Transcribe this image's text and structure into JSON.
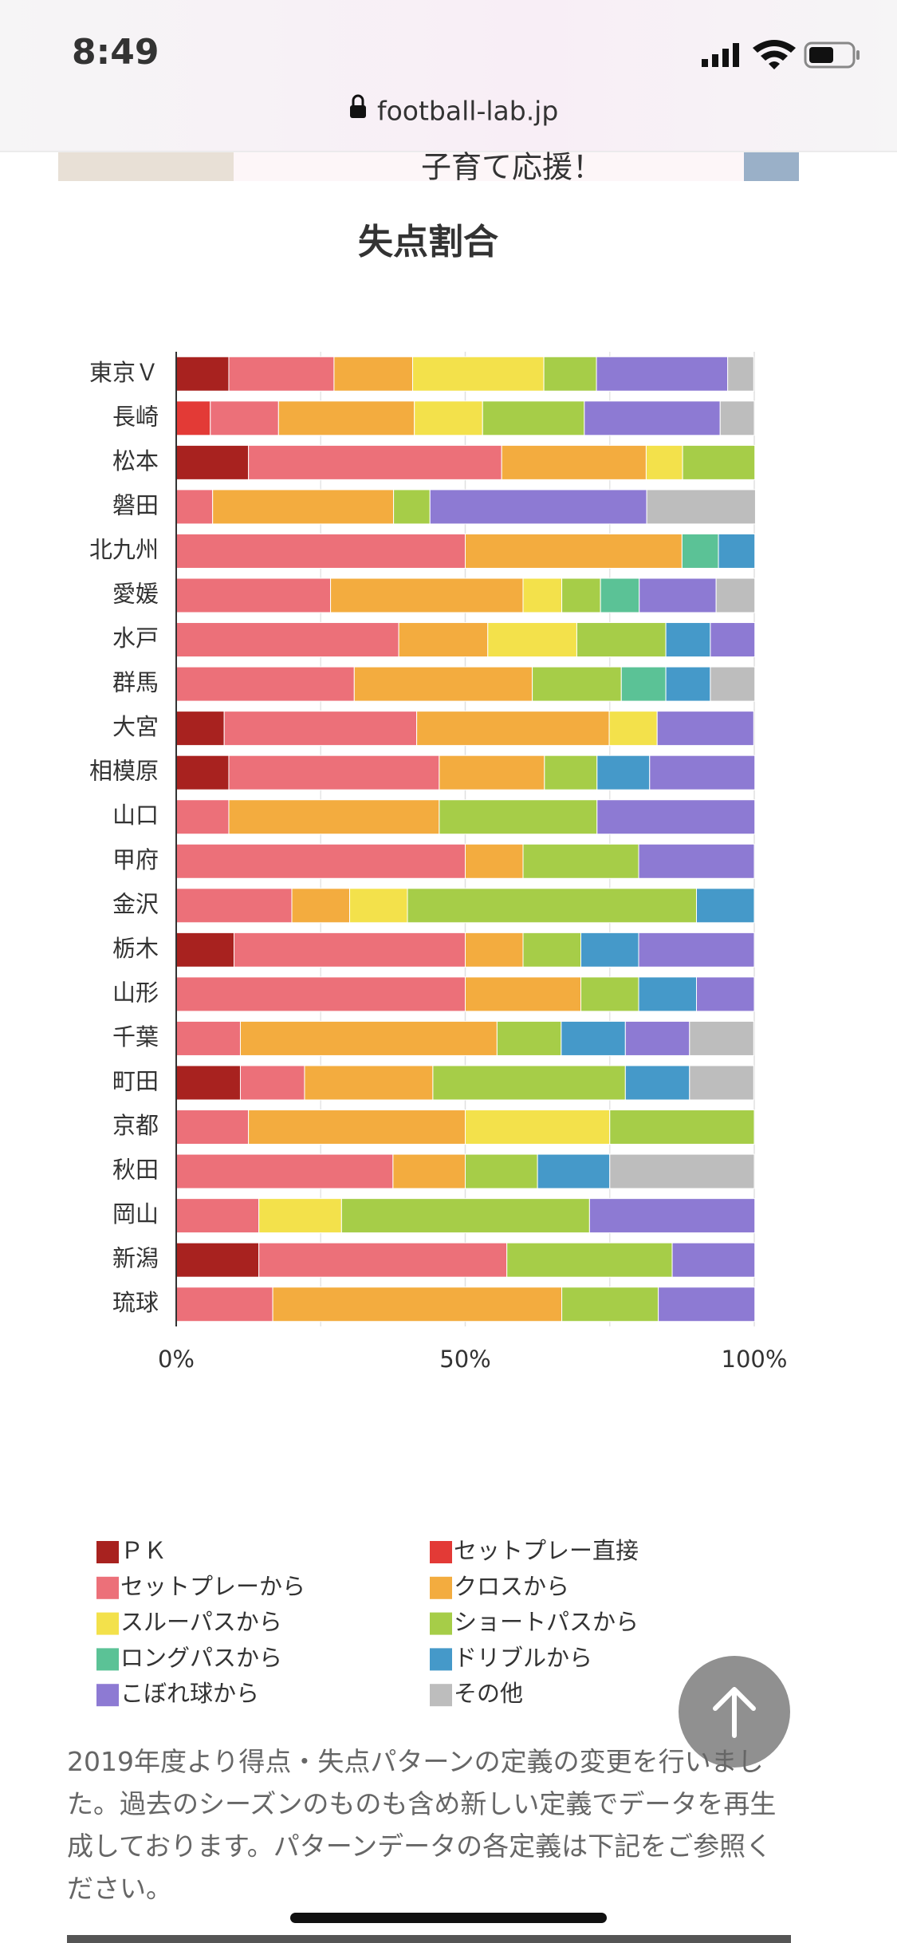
{
  "status_bar": {
    "time": "8:49",
    "url": "football-lab.jp"
  },
  "ad": {
    "text": "子育て応援！"
  },
  "chart_data": {
    "type": "bar",
    "orientation": "horizontal",
    "stacked": true,
    "title": "失点割合",
    "categories": [
      "東京Ｖ",
      "長崎",
      "松本",
      "磐田",
      "北九州",
      "愛媛",
      "水戸",
      "群馬",
      "大宮",
      "相模原",
      "山口",
      "甲府",
      "金沢",
      "栃木",
      "山形",
      "千葉",
      "町田",
      "京都",
      "秋田",
      "岡山",
      "新潟",
      "琉球"
    ],
    "series": [
      {
        "name": "ＰＫ",
        "color": "#a8221f",
        "values": [
          9.1,
          0,
          12.5,
          0,
          0,
          0,
          0,
          0,
          8.3,
          9.1,
          0,
          0,
          0,
          10,
          0,
          0,
          11.1,
          0,
          0,
          0,
          14.3,
          0
        ]
      },
      {
        "name": "セットプレー直接",
        "color": "#e33a36",
        "values": [
          0,
          5.9,
          0,
          0,
          0,
          0,
          0,
          0,
          0,
          0,
          0,
          0,
          0,
          0,
          0,
          0,
          0,
          0,
          0,
          0,
          0,
          0
        ]
      },
      {
        "name": "セットプレーから",
        "color": "#ec7079",
        "values": [
          18.2,
          11.8,
          43.8,
          6.3,
          50,
          26.7,
          38.5,
          30.8,
          33.3,
          36.4,
          9.1,
          50,
          20,
          40,
          50,
          11.1,
          11.1,
          12.5,
          37.5,
          14.3,
          42.9,
          16.7
        ]
      },
      {
        "name": "クロスから",
        "color": "#f3ac3f",
        "values": [
          13.6,
          23.5,
          25,
          31.3,
          37.5,
          33.3,
          15.4,
          30.8,
          33.3,
          18.2,
          36.4,
          10,
          10,
          10,
          20,
          44.4,
          22.2,
          37.5,
          12.5,
          0,
          0,
          50
        ]
      },
      {
        "name": "スルーパスから",
        "color": "#f3e14b",
        "values": [
          22.7,
          11.8,
          6.3,
          0,
          0,
          6.7,
          15.4,
          0,
          8.3,
          0,
          0,
          0,
          10,
          0,
          0,
          0,
          0,
          25,
          0,
          14.3,
          0,
          0
        ]
      },
      {
        "name": "ショートパスから",
        "color": "#a6cd48",
        "values": [
          9.1,
          17.6,
          12.5,
          6.3,
          0,
          6.7,
          15.4,
          15.4,
          0,
          9.1,
          27.3,
          20,
          50,
          10,
          10,
          11.1,
          33.3,
          25,
          12.5,
          42.9,
          28.6,
          16.7
        ]
      },
      {
        "name": "ロングパスから",
        "color": "#5bc296",
        "values": [
          0,
          0,
          0,
          0,
          6.3,
          6.7,
          0,
          7.7,
          0,
          0,
          0,
          0,
          0,
          0,
          0,
          0,
          0,
          0,
          0,
          0,
          0,
          0
        ]
      },
      {
        "name": "ドリブルから",
        "color": "#4599c9",
        "values": [
          0,
          0,
          0,
          0,
          6.3,
          0,
          7.7,
          7.7,
          0,
          9.1,
          0,
          0,
          10,
          10,
          10,
          11.1,
          11.1,
          0,
          12.5,
          0,
          0,
          0
        ]
      },
      {
        "name": "こぼれ球から",
        "color": "#8d7ad3",
        "values": [
          22.7,
          23.5,
          0,
          37.5,
          0,
          13.3,
          7.7,
          0,
          16.7,
          18.2,
          27.3,
          20,
          0,
          20,
          10,
          11.1,
          0,
          0,
          0,
          28.6,
          14.3,
          16.7
        ]
      },
      {
        "name": "その他",
        "color": "#bdbdbd",
        "values": [
          4.5,
          5.9,
          0,
          18.8,
          0,
          6.7,
          0,
          7.7,
          0,
          0,
          0,
          0,
          0,
          0,
          0,
          11.1,
          11.1,
          0,
          25,
          0,
          0,
          0
        ]
      }
    ],
    "xlim": [
      0,
      100
    ],
    "xticks": [
      {
        "value": 0,
        "label": "0%"
      },
      {
        "value": 50,
        "label": "50%"
      },
      {
        "value": 100,
        "label": "100%"
      }
    ],
    "xminorticks": [
      25,
      75
    ],
    "grid": true
  },
  "note": "2019年度より得点・失点パターンの定義の変更を行いました。過去のシーズンのものも含め新しい定義でデータを再生成しております。パターンデータの各定義は下記をご参照ください。"
}
